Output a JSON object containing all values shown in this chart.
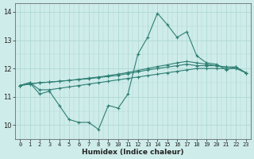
{
  "x": [
    0,
    1,
    2,
    3,
    4,
    5,
    6,
    7,
    8,
    9,
    10,
    11,
    12,
    13,
    14,
    15,
    16,
    17,
    18,
    19,
    20,
    21,
    22,
    23
  ],
  "line1": [
    11.4,
    11.5,
    11.1,
    11.2,
    10.7,
    10.2,
    10.1,
    10.1,
    9.85,
    10.7,
    10.6,
    11.1,
    12.5,
    13.1,
    13.95,
    13.55,
    13.1,
    13.3,
    12.45,
    12.2,
    12.15,
    11.95,
    12.05,
    11.85
  ],
  "line2": [
    11.4,
    11.5,
    11.25,
    11.25,
    11.3,
    11.35,
    11.4,
    11.45,
    11.5,
    11.55,
    11.6,
    11.65,
    11.7,
    11.75,
    11.8,
    11.85,
    11.9,
    11.95,
    12.0,
    12.0,
    12.0,
    12.0,
    12.0,
    11.85
  ],
  "line3": [
    11.4,
    11.45,
    11.5,
    11.52,
    11.55,
    11.58,
    11.61,
    11.64,
    11.68,
    11.72,
    11.76,
    11.82,
    11.88,
    11.95,
    12.0,
    12.05,
    12.1,
    12.15,
    12.1,
    12.1,
    12.1,
    12.05,
    12.05,
    11.85
  ],
  "line4": [
    11.4,
    11.45,
    11.5,
    11.52,
    11.55,
    11.58,
    11.62,
    11.66,
    11.7,
    11.75,
    11.8,
    11.86,
    11.93,
    12.0,
    12.07,
    12.13,
    12.2,
    12.25,
    12.2,
    12.15,
    12.1,
    12.05,
    12.05,
    11.85
  ],
  "line_color": "#2e7f74",
  "bg_color": "#ceecea",
  "grid_color": "#afd8d4",
  "xlabel": "Humidex (Indice chaleur)",
  "ylim": [
    9.5,
    14.3
  ],
  "xlim": [
    -0.5,
    23.5
  ],
  "yticks": [
    10,
    11,
    12,
    13,
    14
  ],
  "xticks": [
    0,
    1,
    2,
    3,
    4,
    5,
    6,
    7,
    8,
    9,
    10,
    11,
    12,
    13,
    14,
    15,
    16,
    17,
    18,
    19,
    20,
    21,
    22,
    23
  ]
}
